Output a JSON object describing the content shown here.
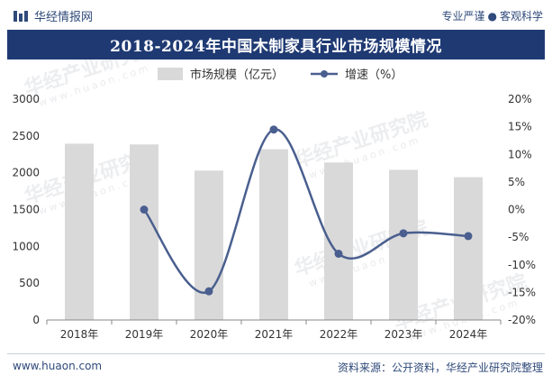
{
  "header": {
    "brand": "华经情报网",
    "slogan_left": "专业严谨",
    "slogan_dot": "●",
    "slogan_right": "客观科学"
  },
  "footer": {
    "website": "www.huaon.com",
    "source": "资料来源：公开资料，华经产业研究院整理"
  },
  "watermark": {
    "text": "华经产业研究院",
    "url": "www.huaon.com"
  },
  "colors": {
    "title_bg": "#1f3a73",
    "bar": "#d9d9d9",
    "line": "#4a5f8f"
  },
  "chart_data": {
    "type": "bar",
    "title": "2018-2024年中国木制家具行业市场规模情况",
    "categories": [
      "2018年",
      "2019年",
      "2020年",
      "2021年",
      "2022年",
      "2023年",
      "2024年"
    ],
    "series": [
      {
        "name": "市场规模（亿元）",
        "type": "bar",
        "axis": "left",
        "values": [
          2395,
          2385,
          2030,
          2320,
          2140,
          2040,
          1940
        ]
      },
      {
        "name": "增速（%）",
        "type": "line",
        "axis": "right",
        "values": [
          null,
          0.0,
          -14.8,
          14.5,
          -8.0,
          -4.3,
          -4.8
        ]
      }
    ],
    "y_left": {
      "min": 0,
      "max": 3000,
      "ticks": [
        "0",
        "500",
        "1000",
        "1500",
        "2000",
        "2500",
        "3000"
      ]
    },
    "y_right": {
      "min": -20,
      "max": 20,
      "ticks": [
        "-20%",
        "-15%",
        "-10%",
        "-5%",
        "0%",
        "5%",
        "10%",
        "15%",
        "20%"
      ]
    }
  }
}
